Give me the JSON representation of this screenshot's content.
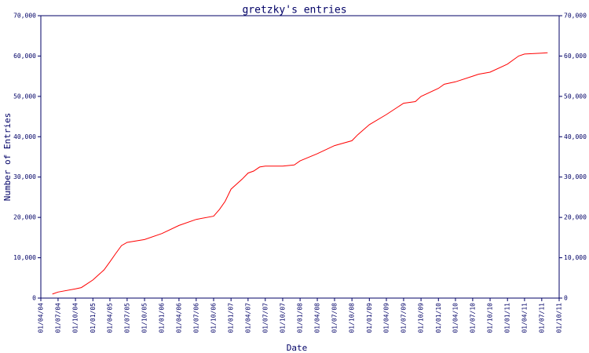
{
  "chart_data": {
    "type": "line",
    "title": "gretzky's entries",
    "x_label": "Date",
    "y_label": "Number of Entries",
    "x": [
      "2004-06-01",
      "2004-07-01",
      "2004-10-01",
      "2004-11-01",
      "2005-01-01",
      "2005-03-01",
      "2005-04-01",
      "2005-05-01",
      "2005-06-01",
      "2005-07-01",
      "2005-10-01",
      "2006-01-01",
      "2006-04-01",
      "2006-07-01",
      "2006-10-01",
      "2006-11-01",
      "2006-12-01",
      "2007-01-01",
      "2007-03-01",
      "2007-04-01",
      "2007-05-01",
      "2007-06-01",
      "2007-07-01",
      "2007-10-01",
      "2007-12-01",
      "2008-01-01",
      "2008-04-01",
      "2008-07-01",
      "2008-10-01",
      "2008-11-01",
      "2009-01-01",
      "2009-04-01",
      "2009-07-01",
      "2009-09-01",
      "2009-10-01",
      "2010-01-01",
      "2010-02-01",
      "2010-04-01",
      "2010-07-01",
      "2010-08-01",
      "2010-10-01",
      "2011-01-01",
      "2011-03-01",
      "2011-04-01",
      "2011-07-01",
      "2011-08-01"
    ],
    "series": [
      {
        "name": "entries",
        "color": "#ff0000",
        "values": [
          1000,
          1500,
          2300,
          2600,
          4500,
          7000,
          9000,
          11000,
          13000,
          13800,
          14500,
          16000,
          18000,
          19500,
          20300,
          22000,
          24000,
          27000,
          29500,
          31000,
          31500,
          32500,
          32700,
          32700,
          33000,
          34000,
          35800,
          37800,
          39000,
          40500,
          43000,
          45500,
          48300,
          48700,
          50000,
          52000,
          53000,
          53600,
          55000,
          55500,
          56000,
          58000,
          60000,
          60500,
          60700,
          60800
        ]
      }
    ],
    "xlim": [
      "2004-04-01",
      "2011-10-01"
    ],
    "xticks": [
      {
        "value": "2004-04-01",
        "label": "01/04/04"
      },
      {
        "value": "2004-07-01",
        "label": "01/07/04"
      },
      {
        "value": "2004-10-01",
        "label": "01/10/04"
      },
      {
        "value": "2005-01-01",
        "label": "01/01/05"
      },
      {
        "value": "2005-04-01",
        "label": "01/04/05"
      },
      {
        "value": "2005-07-01",
        "label": "01/07/05"
      },
      {
        "value": "2005-10-01",
        "label": "01/10/05"
      },
      {
        "value": "2006-01-01",
        "label": "01/01/06"
      },
      {
        "value": "2006-04-01",
        "label": "01/04/06"
      },
      {
        "value": "2006-07-01",
        "label": "01/07/06"
      },
      {
        "value": "2006-10-01",
        "label": "01/10/06"
      },
      {
        "value": "2007-01-01",
        "label": "01/01/07"
      },
      {
        "value": "2007-04-01",
        "label": "01/04/07"
      },
      {
        "value": "2007-07-01",
        "label": "01/07/07"
      },
      {
        "value": "2007-10-01",
        "label": "01/10/07"
      },
      {
        "value": "2008-01-01",
        "label": "01/01/08"
      },
      {
        "value": "2008-04-01",
        "label": "01/04/08"
      },
      {
        "value": "2008-07-01",
        "label": "01/07/08"
      },
      {
        "value": "2008-10-01",
        "label": "01/10/08"
      },
      {
        "value": "2009-01-01",
        "label": "01/01/09"
      },
      {
        "value": "2009-04-01",
        "label": "01/04/09"
      },
      {
        "value": "2009-07-01",
        "label": "01/07/09"
      },
      {
        "value": "2009-10-01",
        "label": "01/10/09"
      },
      {
        "value": "2010-01-01",
        "label": "01/01/10"
      },
      {
        "value": "2010-04-01",
        "label": "01/04/10"
      },
      {
        "value": "2010-07-01",
        "label": "01/07/10"
      },
      {
        "value": "2010-10-01",
        "label": "01/10/10"
      },
      {
        "value": "2011-01-01",
        "label": "01/01/11"
      },
      {
        "value": "2011-04-01",
        "label": "01/04/11"
      },
      {
        "value": "2011-07-01",
        "label": "01/07/11"
      },
      {
        "value": "2011-10-01",
        "label": "01/10/11"
      }
    ],
    "ylim": [
      0,
      70000
    ],
    "yticks": [
      0,
      {
        "value": 10000,
        "label": "10,000"
      },
      {
        "value": 20000,
        "label": "20,000"
      },
      {
        "value": 30000,
        "label": "30,000"
      },
      {
        "value": 40000,
        "label": "40,000"
      },
      {
        "value": 50000,
        "label": "50,000"
      },
      {
        "value": 60000,
        "label": "60,000"
      },
      {
        "value": 70000,
        "label": "70,000"
      }
    ],
    "right_axis_mirror": true
  }
}
